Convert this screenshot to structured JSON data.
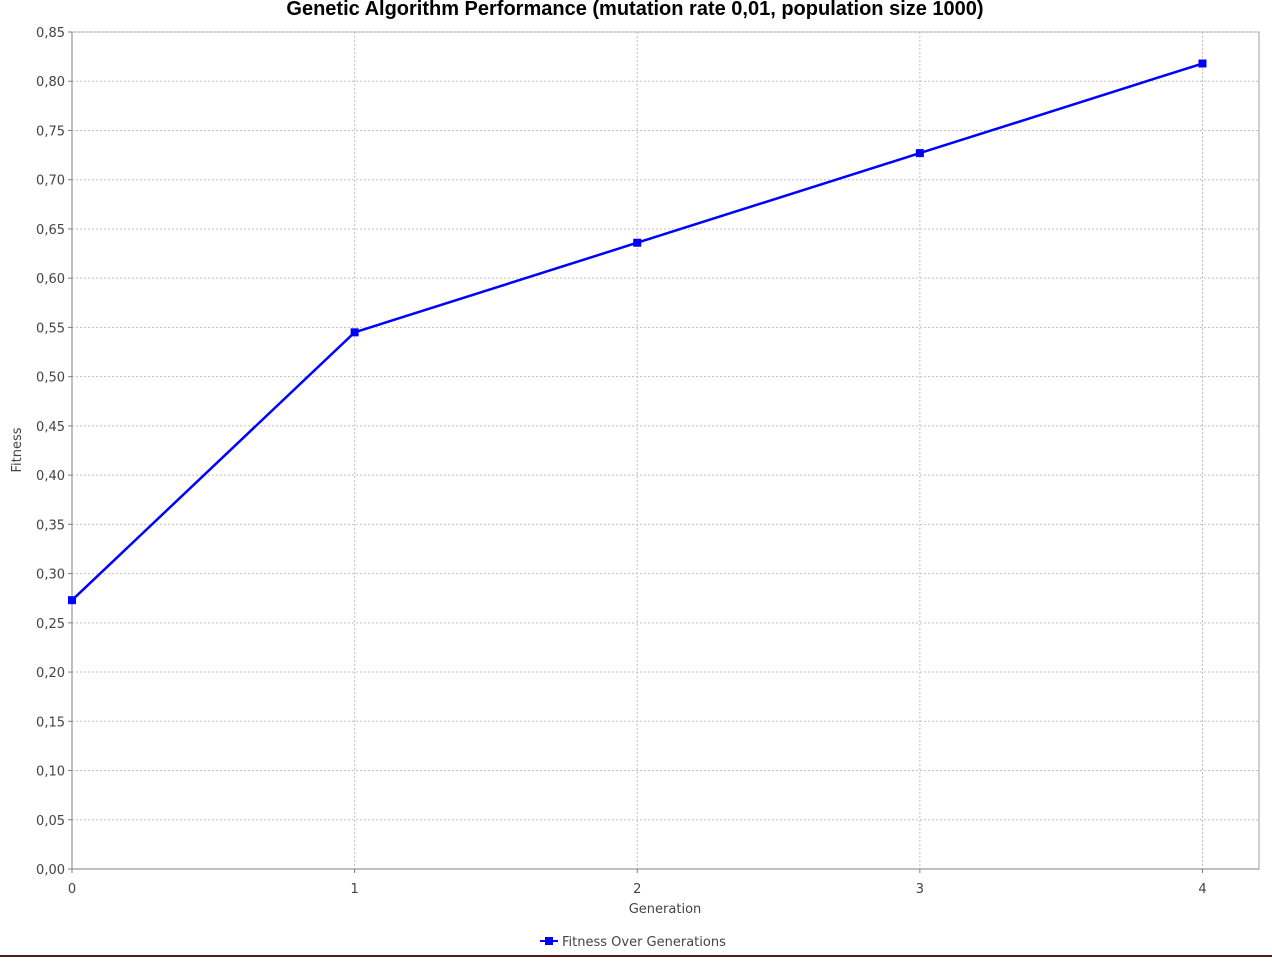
{
  "chart_data": {
    "type": "line",
    "title": "Genetic Algorithm Performance (mutation rate 0,01, population size 1000)",
    "xlabel": "Generation",
    "ylabel": "Fitness",
    "x": [
      0,
      1,
      2,
      3,
      4
    ],
    "x_tick_labels": [
      "0",
      "1",
      "2",
      "3",
      "4"
    ],
    "y_tick_labels": [
      "0,00",
      "0,05",
      "0,10",
      "0,15",
      "0,20",
      "0,25",
      "0,30",
      "0,35",
      "0,40",
      "0,45",
      "0,50",
      "0,55",
      "0,60",
      "0,65",
      "0,70",
      "0,75",
      "0,80",
      "0,85"
    ],
    "xlim": [
      0,
      4.2
    ],
    "ylim": [
      0,
      0.85
    ],
    "grid": true,
    "legend_position": "bottom-center",
    "series": [
      {
        "name": "Fitness Over Generations",
        "values": [
          0.273,
          0.545,
          0.636,
          0.727,
          0.818
        ],
        "color": "#0000ff",
        "marker": "square"
      }
    ]
  }
}
